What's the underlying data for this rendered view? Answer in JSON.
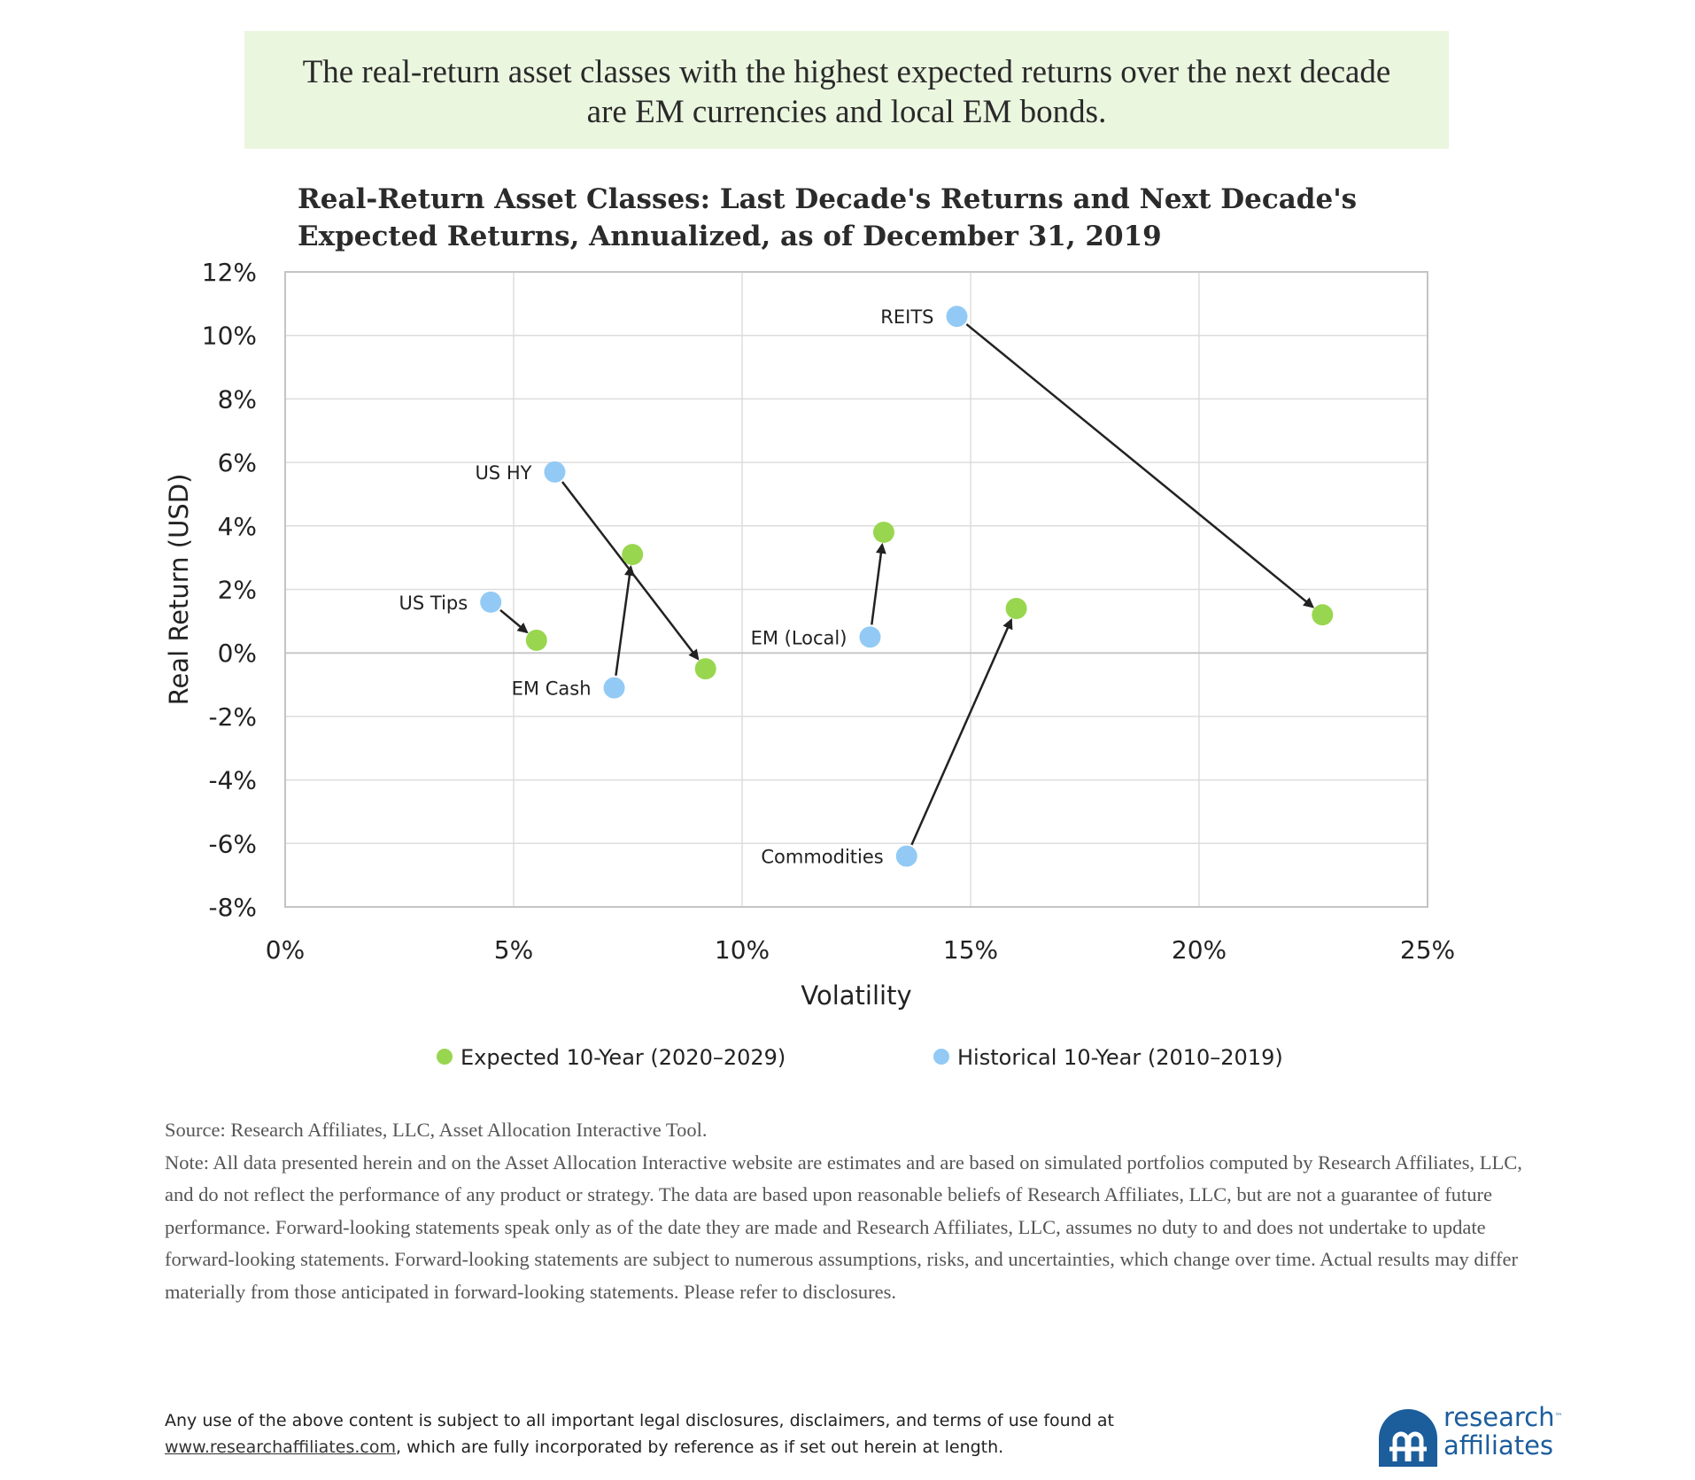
{
  "headline": "The real-return asset classes with the highest expected returns over the next decade are EM currencies and local EM bonds.",
  "chart_title_line1": "Real-Return Asset Classes: Last Decade's Returns and Next Decade's",
  "chart_title_line2": "Expected Returns, Annualized, as of December 31, 2019",
  "colors": {
    "expected": "#99d64f",
    "historical": "#92caf5",
    "arrow": "#222222",
    "grid": "#dddddd",
    "headline_bg": "#ebf6df",
    "logo": "#1c5d9c"
  },
  "chart_data": {
    "type": "scatter",
    "title": "Real-Return Asset Classes: Last Decade's Returns and Next Decade's Expected Returns, Annualized, as of December 31, 2019",
    "xlabel": "Volatility",
    "ylabel": "Real Return (USD)",
    "xlim": [
      0,
      25
    ],
    "ylim": [
      -8,
      12
    ],
    "x_ticks": [
      "0%",
      "5%",
      "10%",
      "15%",
      "20%",
      "25%"
    ],
    "y_ticks": [
      "12%",
      "10%",
      "8%",
      "6%",
      "4%",
      "2%",
      "0%",
      "-2%",
      "-4%",
      "-6%",
      "-8%"
    ],
    "grid": true,
    "legend_position": "bottom",
    "series": [
      {
        "name": "Expected 10-Year (2020–2029)",
        "key": "expected"
      },
      {
        "name": "Historical 10-Year (2010–2019)",
        "key": "historical"
      }
    ],
    "assets": [
      {
        "label": "REITS",
        "historical": {
          "x": 14.7,
          "y": 10.6
        },
        "expected": {
          "x": 22.7,
          "y": 1.2
        }
      },
      {
        "label": "US HY",
        "historical": {
          "x": 5.9,
          "y": 5.7
        },
        "expected": {
          "x": 9.2,
          "y": -0.5
        }
      },
      {
        "label": "US Tips",
        "historical": {
          "x": 4.5,
          "y": 1.6
        },
        "expected": {
          "x": 5.5,
          "y": 0.4
        }
      },
      {
        "label": "EM Cash",
        "historical": {
          "x": 7.2,
          "y": -1.1
        },
        "expected": {
          "x": 7.6,
          "y": 3.1
        }
      },
      {
        "label": "EM (Local)",
        "historical": {
          "x": 12.8,
          "y": 0.5
        },
        "expected": {
          "x": 13.1,
          "y": 3.8
        }
      },
      {
        "label": "Commodities",
        "historical": {
          "x": 13.6,
          "y": -6.4
        },
        "expected": {
          "x": 16.0,
          "y": 1.4
        }
      }
    ]
  },
  "note": {
    "source": "Source: Research Affiliates, LLC, Asset Allocation Interactive Tool.",
    "text": "Note: All data presented herein and on the Asset Allocation Interactive website are estimates and are based on simulated portfolios computed by Research Affiliates, LLC, and do not reflect the performance of any product or strategy. The data are based upon reasonable beliefs of Research Affiliates, LLC, but are not a guarantee of future performance. Forward-looking statements speak only as of the date they are made and Research Affiliates, LLC, assumes no duty to and does not undertake to update forward-looking statements. Forward-looking statements are subject to numerous assumptions, risks, and uncertainties, which change over time. Actual results may differ materially from those anticipated in forward-looking statements. Please refer to disclosures."
  },
  "footer": {
    "line1": "Any use of the above content is subject to all important legal disclosures, disclaimers, and terms of use found at",
    "link": "www.researchaffiliates.com",
    "line2_rest": ", which are fully incorporated by reference as if set out herein at length."
  },
  "logo": {
    "line1": "research",
    "tm": "™",
    "line2": "affiliates"
  }
}
